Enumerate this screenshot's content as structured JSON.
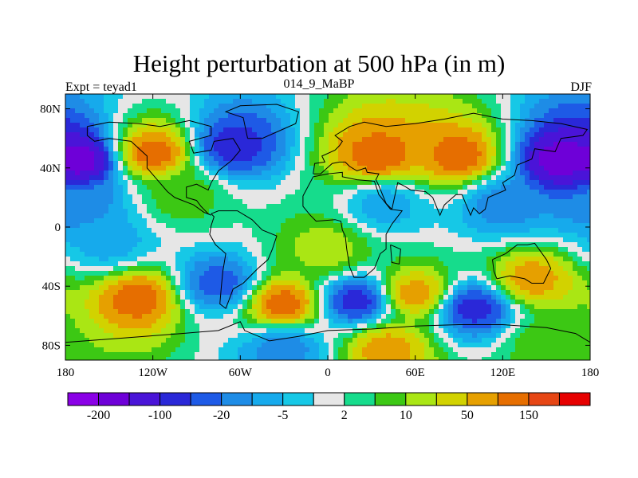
{
  "title": "Height perturbation at 500 hPa (in m)",
  "subtitle_left": "Expt = teyad1",
  "subtitle_center": "014_9_MaBP",
  "subtitle_right": "DJF",
  "lon_ticks": [
    {
      "lon": -180,
      "label": "180"
    },
    {
      "lon": -120,
      "label": "120W"
    },
    {
      "lon": -60,
      "label": "60W"
    },
    {
      "lon": 0,
      "label": "0"
    },
    {
      "lon": 60,
      "label": "60E"
    },
    {
      "lon": 120,
      "label": "120E"
    },
    {
      "lon": 180,
      "label": "180"
    }
  ],
  "lat_ticks": [
    {
      "lat": 80,
      "label": "80N"
    },
    {
      "lat": 40,
      "label": "40N"
    },
    {
      "lat": 0,
      "label": "0"
    },
    {
      "lat": -40,
      "label": "40S"
    },
    {
      "lat": -80,
      "label": "80S"
    }
  ],
  "colorbar": {
    "colors": [
      "#8a00e6",
      "#6e00d8",
      "#4a14d8",
      "#2a28d8",
      "#1e5ae6",
      "#1e8ce6",
      "#16aaec",
      "#16c8e6",
      "#e6e6e6",
      "#16dc8c",
      "#3cc814",
      "#aae614",
      "#d2d200",
      "#e6a000",
      "#e66e00",
      "#e64614",
      "#e60000"
    ],
    "labels": [
      {
        "boundary": 1,
        "text": "-200"
      },
      {
        "boundary": 3,
        "text": "-100"
      },
      {
        "boundary": 5,
        "text": "-20"
      },
      {
        "boundary": 7,
        "text": "-5"
      },
      {
        "boundary": 9,
        "text": "2"
      },
      {
        "boundary": 11,
        "text": "10"
      },
      {
        "boundary": 13,
        "text": "50"
      },
      {
        "boundary": 15,
        "text": "150"
      }
    ]
  },
  "anomaly_centers": [
    {
      "lon": -170,
      "lat": 45,
      "level": 1
    },
    {
      "lon": -120,
      "lat": 50,
      "level": 14
    },
    {
      "lon": -65,
      "lat": 55,
      "level": 3
    },
    {
      "lon": 35,
      "lat": 48,
      "level": 14
    },
    {
      "lon": 90,
      "lat": 48,
      "level": 14
    },
    {
      "lon": 160,
      "lat": 45,
      "level": 1
    },
    {
      "lon": -170,
      "lat": 15,
      "level": 5
    },
    {
      "lon": -100,
      "lat": 20,
      "level": 10
    },
    {
      "lon": 40,
      "lat": 15,
      "level": 6
    },
    {
      "lon": 120,
      "lat": 15,
      "level": 5
    },
    {
      "lon": 0,
      "lat": -15,
      "level": 11
    },
    {
      "lon": -150,
      "lat": -10,
      "level": 6
    },
    {
      "lon": -130,
      "lat": -48,
      "level": 14
    },
    {
      "lon": -75,
      "lat": -38,
      "level": 4
    },
    {
      "lon": -30,
      "lat": -52,
      "level": 14
    },
    {
      "lon": 20,
      "lat": -50,
      "level": 3
    },
    {
      "lon": 60,
      "lat": -45,
      "level": 13
    },
    {
      "lon": 100,
      "lat": -55,
      "level": 3
    },
    {
      "lon": 140,
      "lat": -35,
      "level": 13
    },
    {
      "lon": -30,
      "lat": -82,
      "level": 5
    },
    {
      "lon": 40,
      "lat": -82,
      "level": 13
    },
    {
      "lon": 150,
      "lat": -80,
      "level": 10
    }
  ]
}
